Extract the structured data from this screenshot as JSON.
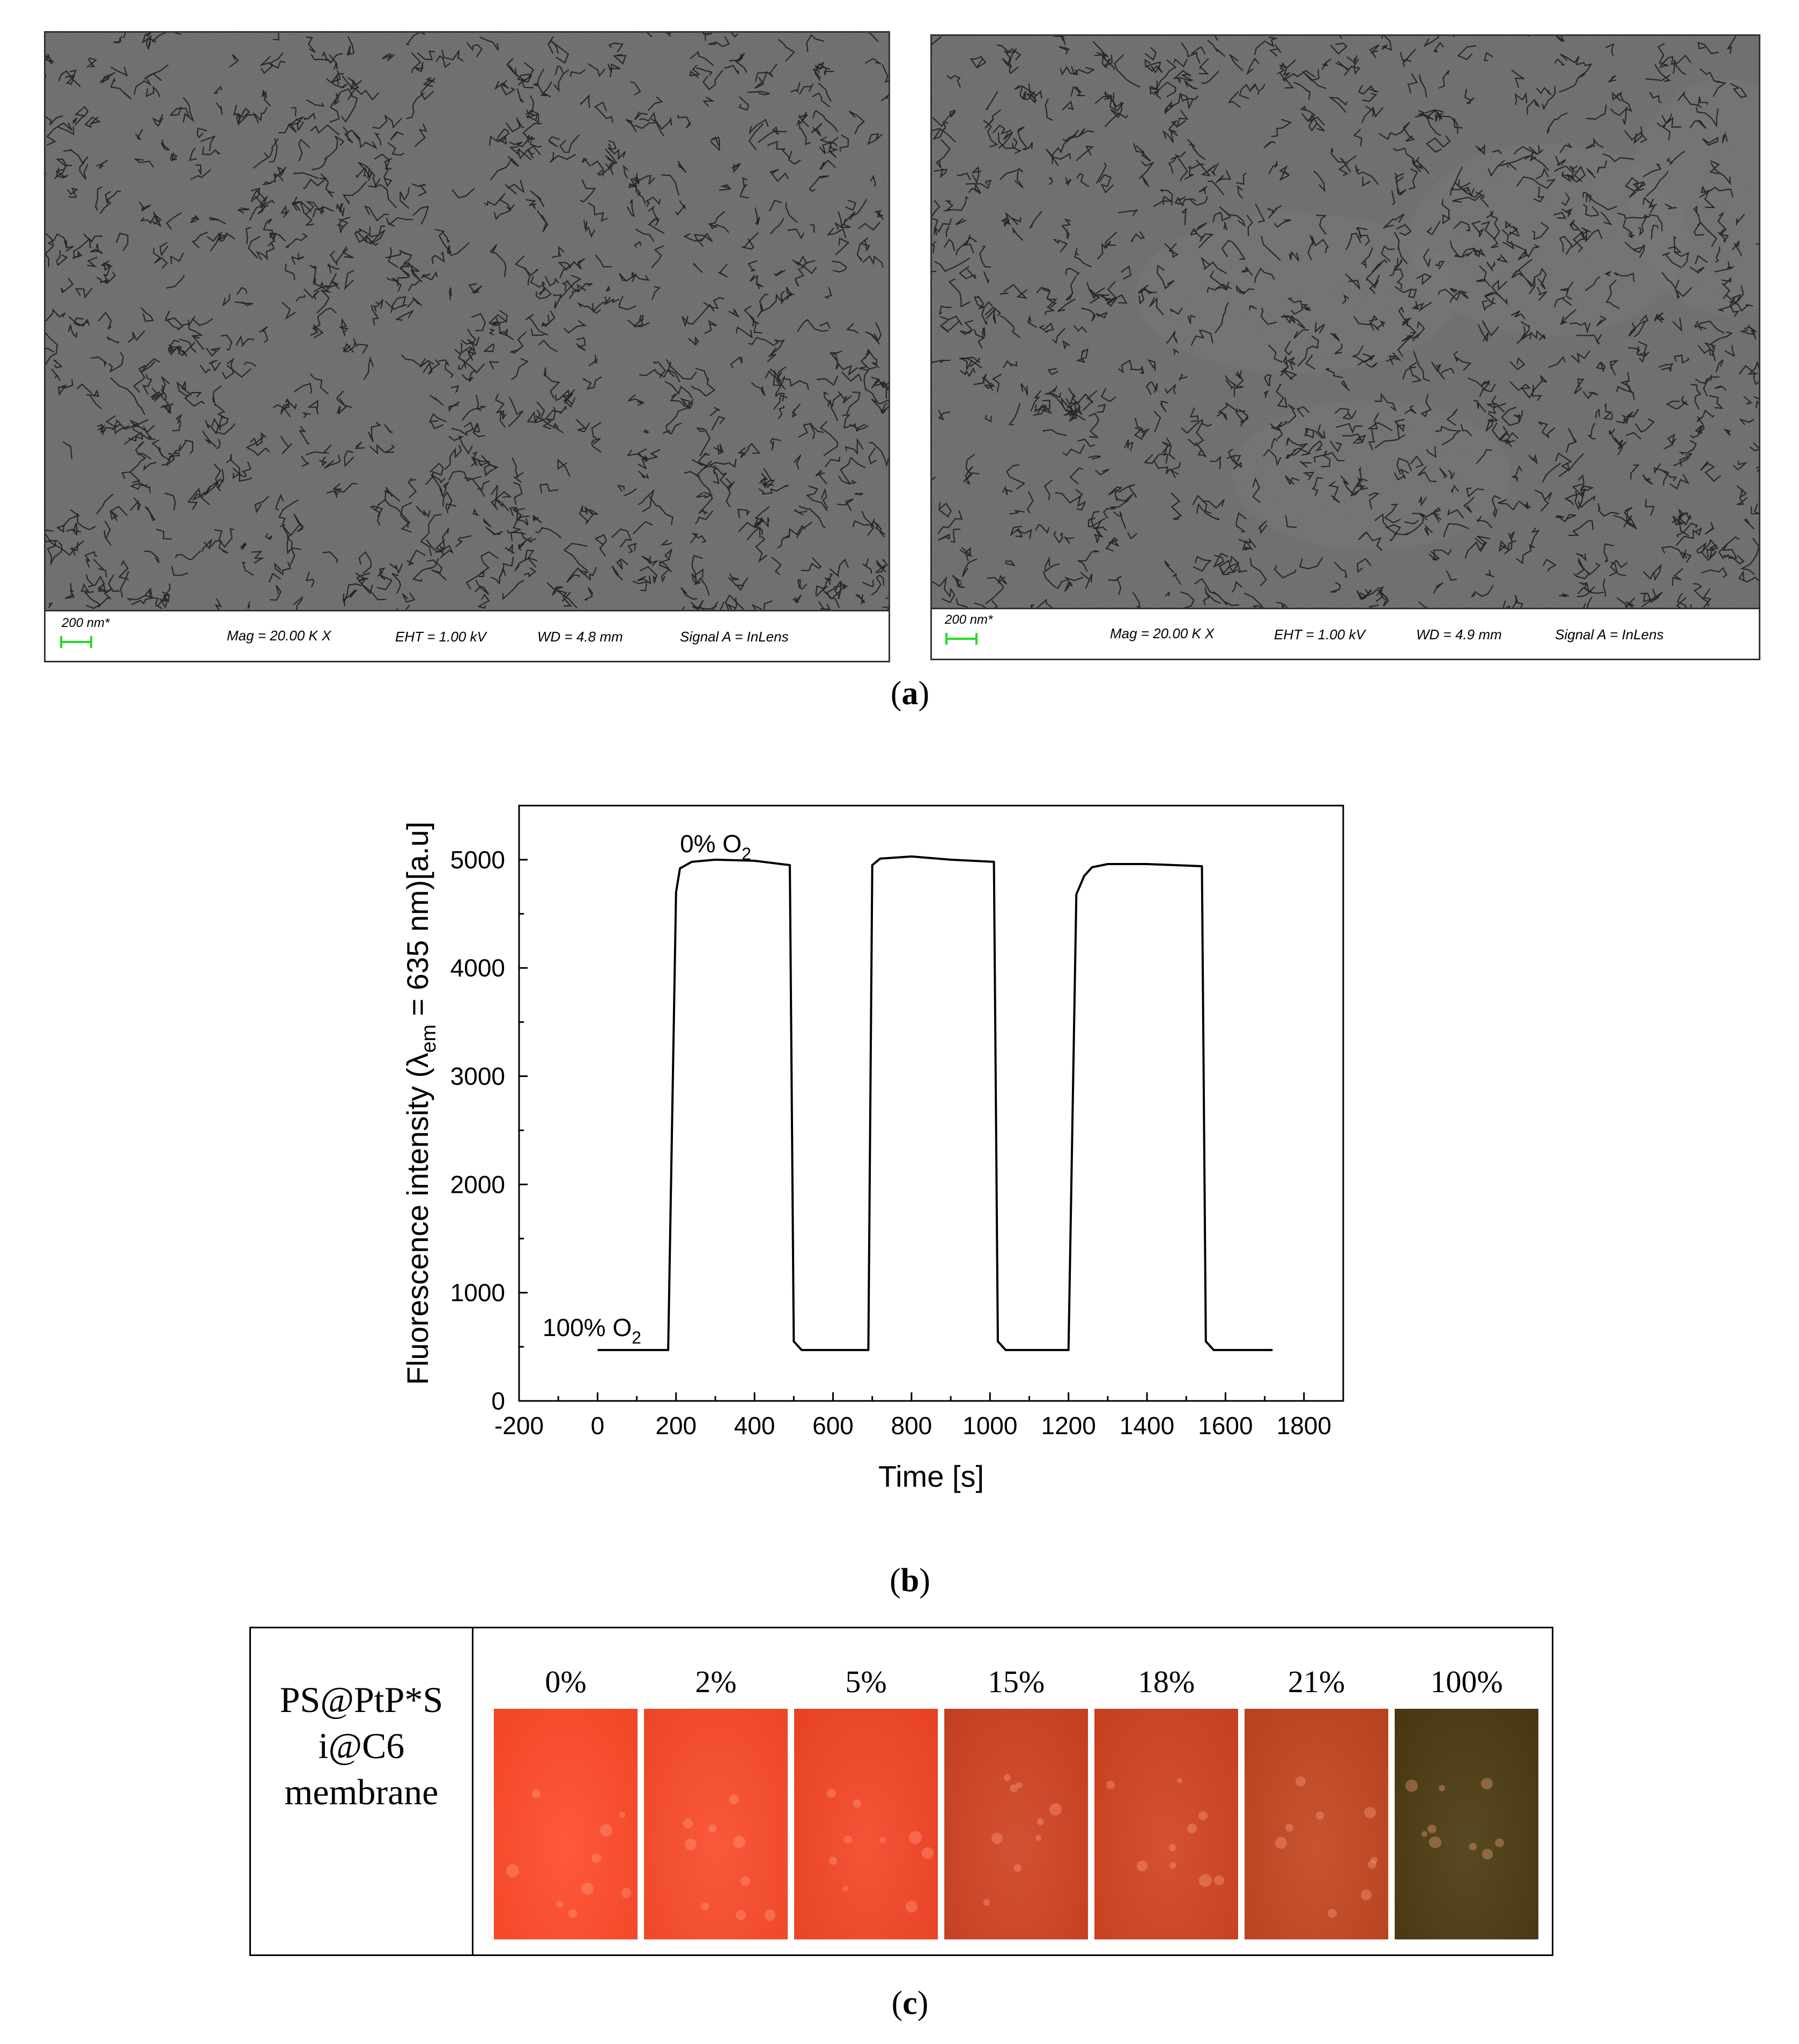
{
  "panel_a": {
    "label": "a",
    "images": [
      {
        "scale_label": "200 nm*",
        "mag": "Mag =  20.00 K X",
        "eht": "EHT =  1.00 kV",
        "wd": "WD =  4.8 mm",
        "signal": "Signal A = InLens"
      },
      {
        "scale_label": "200 nm*",
        "mag": "Mag =  20.00 K X",
        "eht": "EHT =  1.00 kV",
        "wd": "WD =  4.9 mm",
        "signal": "Signal A = InLens"
      }
    ],
    "scalebar_color": "#22dd22"
  },
  "panel_b": {
    "label": "b"
  },
  "chart_data": {
    "type": "line",
    "xlabel": "Time [s]",
    "ylabel_parts": {
      "main": "Fluorescence intensity (λ",
      "sub": "em",
      "rest": " = 635 nm)[a.u]"
    },
    "xlim": [
      -200,
      1900
    ],
    "ylim": [
      0,
      5500
    ],
    "xticks": [
      -200,
      0,
      200,
      400,
      600,
      800,
      1000,
      1200,
      1400,
      1600,
      1800
    ],
    "yticks": [
      0,
      1000,
      2000,
      3000,
      4000,
      5000
    ],
    "xtick_labels": [
      "-200",
      "0",
      "200",
      "400",
      "600",
      "800",
      "1000",
      "1200",
      "1400",
      "1600",
      "1800"
    ],
    "ytick_labels": [
      "0",
      "1000",
      "2000",
      "3000",
      "4000",
      "5000"
    ],
    "annotations": [
      {
        "text": "0% O",
        "sub": "2",
        "x": 210,
        "y": 5070
      },
      {
        "text": "100% O",
        "sub": "2",
        "x": -140,
        "y": 600
      }
    ],
    "series": [
      {
        "x": [
          0,
          180,
          200,
          210,
          240,
          300,
          400,
          490,
          500,
          520,
          690,
          700,
          720,
          800,
          900,
          1010,
          1020,
          1040,
          1200,
          1220,
          1240,
          1260,
          1300,
          1400,
          1540,
          1550,
          1570,
          1720
        ],
        "y": [
          470,
          470,
          4700,
          4920,
          4980,
          5000,
          4990,
          4950,
          550,
          470,
          470,
          4950,
          5010,
          5030,
          5000,
          4980,
          550,
          470,
          470,
          4680,
          4850,
          4930,
          4960,
          4960,
          4940,
          550,
          470,
          470
        ]
      }
    ],
    "grid": false,
    "color": "#000000"
  },
  "panel_c": {
    "label": "c",
    "row_label_lines": [
      "PS@PtP*S",
      "i@C6",
      "membrane"
    ],
    "swatches": [
      {
        "label": "0%",
        "color": "#ff4a2a"
      },
      {
        "label": "2%",
        "color": "#fa4a2a"
      },
      {
        "label": "5%",
        "color": "#f44526"
      },
      {
        "label": "15%",
        "color": "#cf4222"
      },
      {
        "label": "18%",
        "color": "#d0431f"
      },
      {
        "label": "21%",
        "color": "#c34520"
      },
      {
        "label": "100%",
        "color": "#4a3a10"
      }
    ]
  }
}
